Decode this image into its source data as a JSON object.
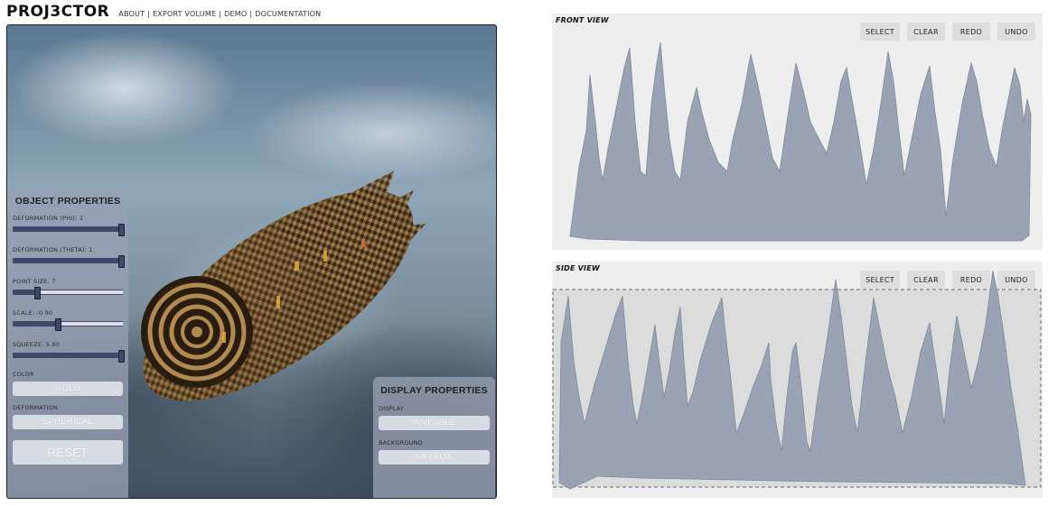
{
  "app": {
    "logo": "PROJ3CTOR",
    "nav": [
      "ABOUT",
      "EXPORT VOLUME",
      "DEMO",
      "DOCUMENTATION"
    ]
  },
  "object_properties": {
    "title": "OBJECT PROPERTIES",
    "sliders": [
      {
        "label": "DEFORMATION (PHI): 1",
        "level": 1.0
      },
      {
        "label": "DEFORMATION (THETA): 1",
        "level": 1.0
      },
      {
        "label": "POINT SIZE: 7",
        "level": 0.22
      },
      {
        "label": "SCALE: -0.90",
        "level": 0.41
      },
      {
        "label": "SQUEEZE: 5.00",
        "level": 1.0
      }
    ],
    "color_label": "COLOR",
    "color_value": "GOLD",
    "deformation_label": "DEFORMATION",
    "deformation_value": "SPHERICAL",
    "reset_label": "RESET"
  },
  "display_properties": {
    "title": "DISPLAY PROPERTIES",
    "display_label": "DISPLAY",
    "display_value": "INVISIBLE",
    "background_label": "BACKGROUND",
    "background_value": "SKYBOX"
  },
  "front_view": {
    "title": "FRONT VIEW",
    "buttons": [
      "SELECT",
      "CLEAR",
      "REDO",
      "UNDO"
    ]
  },
  "side_view": {
    "title": "SIDE VIEW",
    "buttons": [
      "SELECT",
      "CLEAR",
      "REDO",
      "UNDO"
    ]
  },
  "colors": {
    "waveform_fill": "#9aa3b3",
    "waveform_stroke": "#7f889a",
    "panel_slider": "#3e4868",
    "selection_fill": "#dcdcdc"
  }
}
